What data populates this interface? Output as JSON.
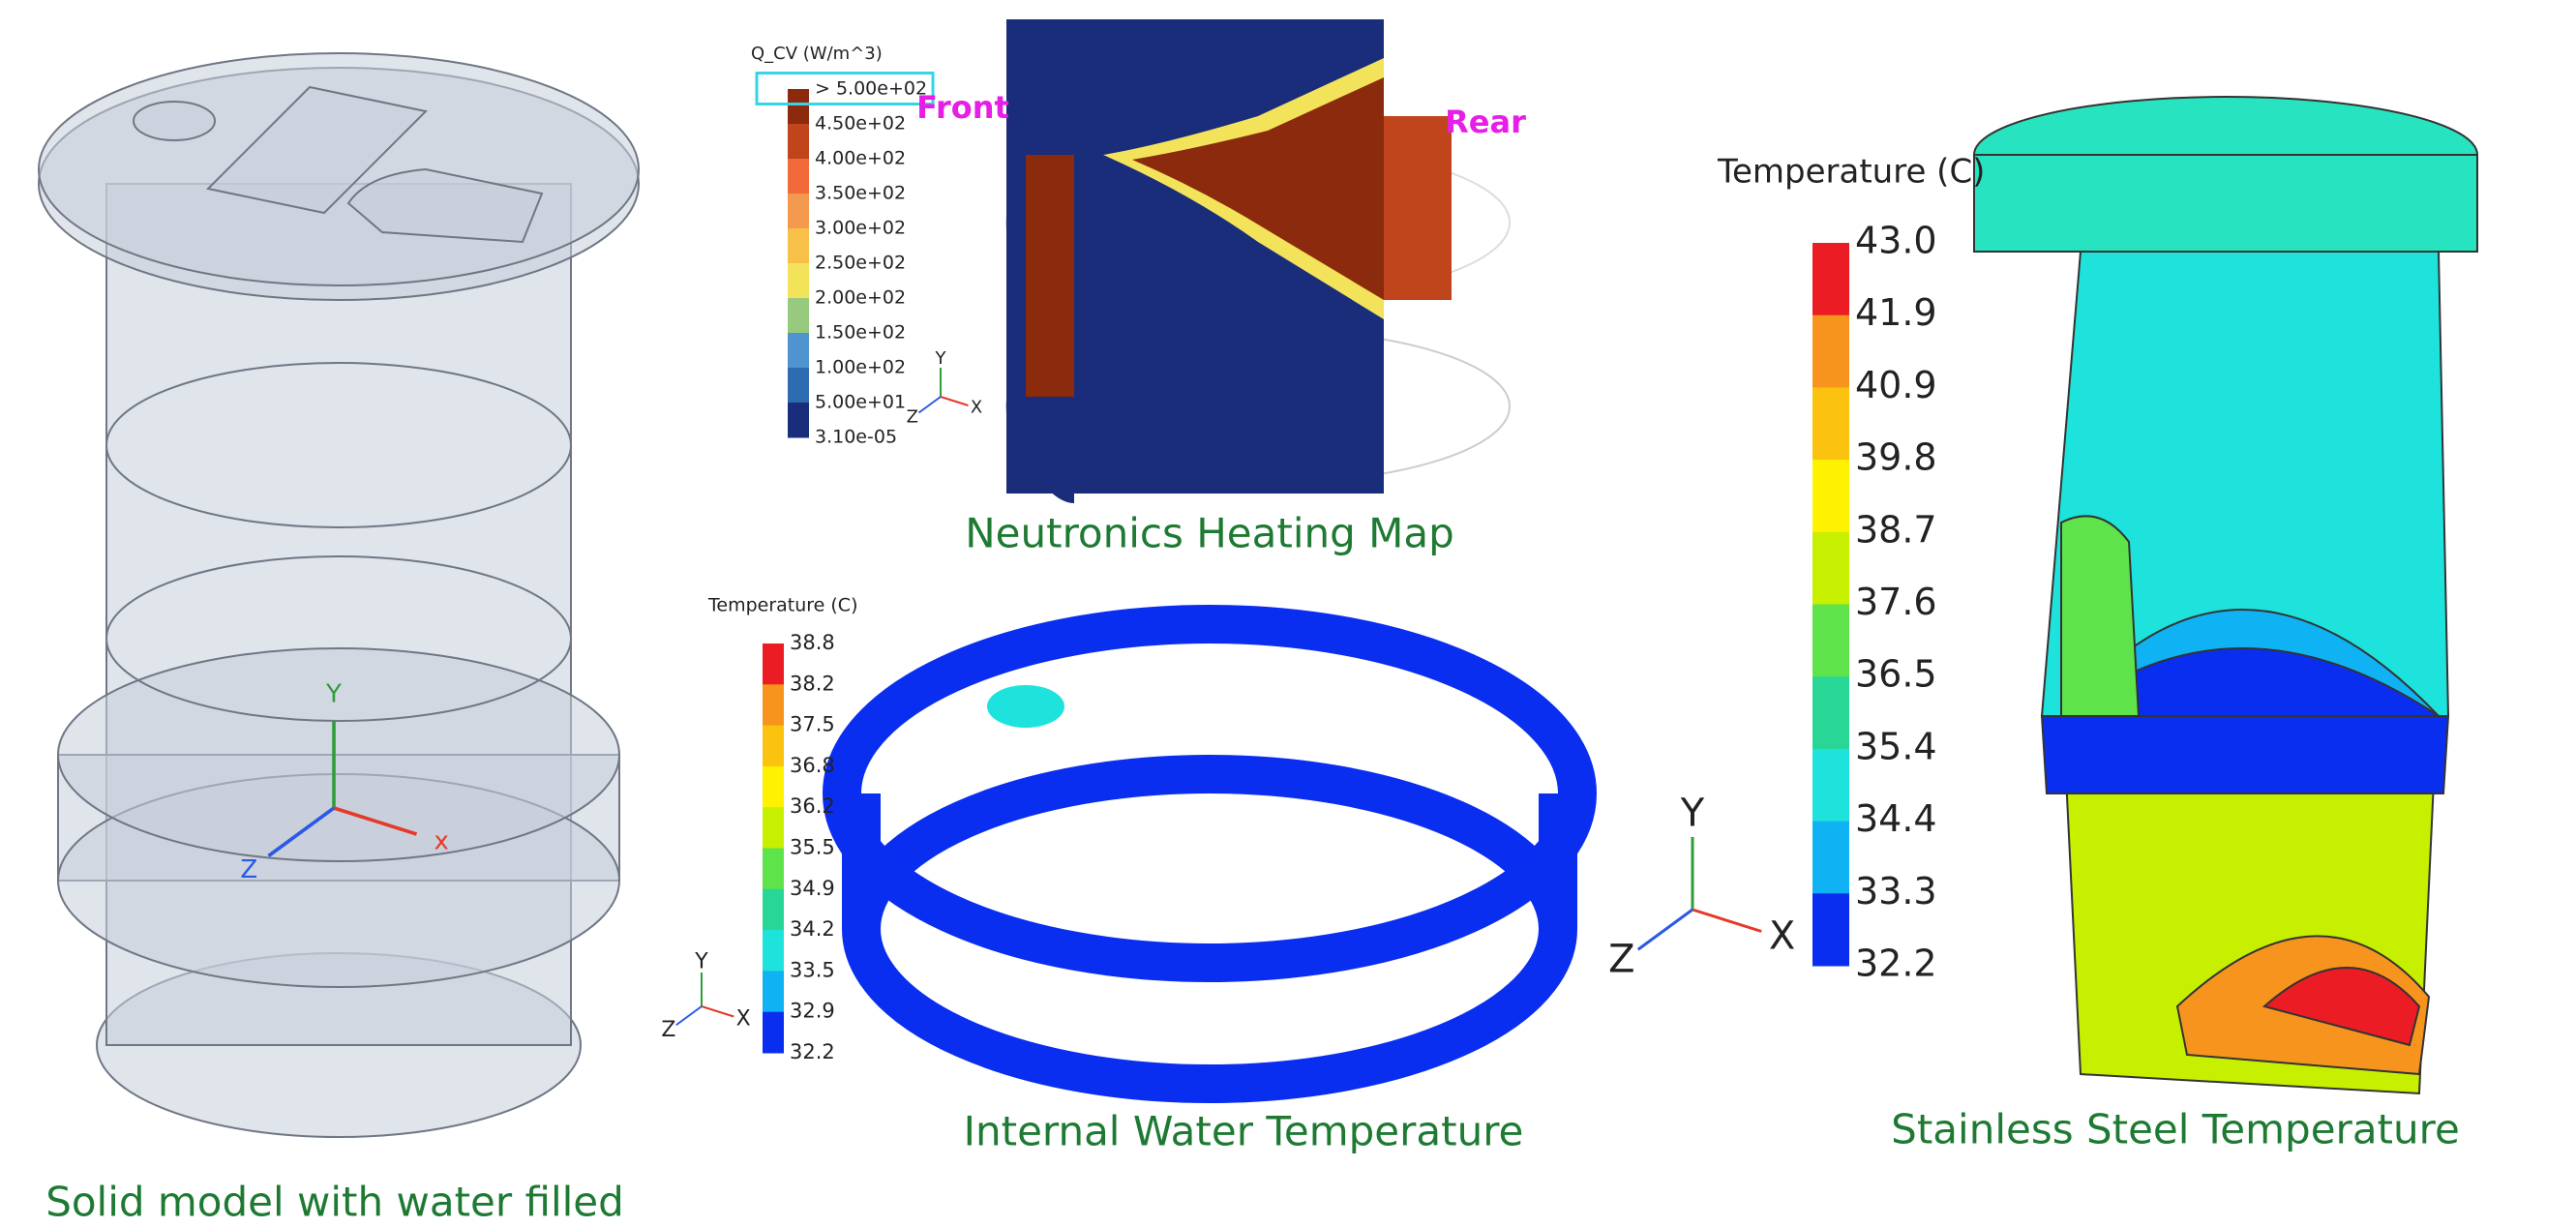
{
  "panels": [
    {
      "caption": "Solid model with water filled",
      "axes": [
        "Y",
        "x",
        "Z"
      ]
    },
    {
      "caption": "Neutronics Heating Map",
      "legend": {
        "title": "Q_CV (W/m^3)",
        "labels": [
          "> 5.00e+02",
          "4.50e+02",
          "4.00e+02",
          "3.50e+02",
          "3.00e+02",
          "2.50e+02",
          "2.00e+02",
          "1.50e+02",
          "1.00e+02",
          "5.00e+01",
          "3.10e-05"
        ],
        "colors": [
          "#8b2a0c",
          "#c0441c",
          "#f06a3a",
          "#f39a4e",
          "#f6c049",
          "#f3e35a",
          "#97c97e",
          "#4f93cf",
          "#2e6cb2",
          "#1a2d7a"
        ]
      },
      "annotations": [
        "Front",
        "Rear"
      ],
      "axes": [
        "Y",
        "X",
        "Z"
      ]
    },
    {
      "caption": "Internal Water Temperature",
      "legend": {
        "title": "Temperature (C)",
        "labels": [
          "38.8",
          "38.2",
          "37.5",
          "36.8",
          "36.2",
          "35.5",
          "34.9",
          "34.2",
          "33.5",
          "32.9",
          "32.2"
        ],
        "colors": [
          "#ec1c24",
          "#f7941d",
          "#fbc20f",
          "#fff200",
          "#c6f000",
          "#5ee34a",
          "#28d795",
          "#1ee3dc",
          "#0fb2f2",
          "#0a2ef0"
        ]
      },
      "axes": [
        "Y",
        "X",
        "Z"
      ]
    },
    {
      "caption": "Stainless Steel Temperature",
      "legend": {
        "title": "Temperature (C)",
        "labels": [
          "43.0",
          "41.9",
          "40.9",
          "39.8",
          "38.7",
          "37.6",
          "36.5",
          "35.4",
          "34.4",
          "33.3",
          "32.2"
        ],
        "colors": [
          "#ec1c24",
          "#f7941d",
          "#fbc20f",
          "#fff200",
          "#c6f000",
          "#5ee34a",
          "#28d795",
          "#1ee3dc",
          "#0fb2f2",
          "#0a2ef0"
        ]
      },
      "axes": [
        "Y",
        "X",
        "Z"
      ]
    }
  ]
}
